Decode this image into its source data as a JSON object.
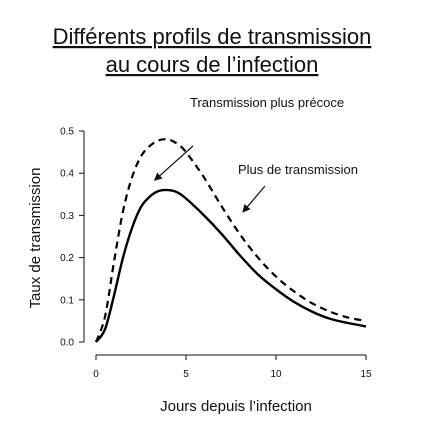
{
  "chart_data": {
    "type": "line",
    "title_line1": "Différents profils de transmission",
    "title_line2": "au cours de l’infection",
    "xlabel": "Jours depuis l’infection",
    "ylabel": "Taux de transmission",
    "xlim": [
      0,
      15
    ],
    "ylim": [
      0,
      0.5
    ],
    "xticks": [
      "0",
      "5",
      "10",
      "15"
    ],
    "yticks": [
      "0.0",
      "0.1",
      "0.2",
      "0.3",
      "0.4",
      "0.5"
    ],
    "grid": false,
    "series": [
      {
        "style": "solid",
        "color": "#000000",
        "x": [
          0,
          0.5,
          1,
          1.5,
          2,
          2.5,
          3,
          3.5,
          4,
          4.5,
          5,
          6,
          7,
          8,
          9,
          10,
          11,
          12,
          13,
          14,
          15
        ],
        "y": [
          0.0,
          0.03,
          0.11,
          0.2,
          0.27,
          0.32,
          0.345,
          0.358,
          0.36,
          0.355,
          0.34,
          0.3,
          0.255,
          0.205,
          0.16,
          0.125,
          0.095,
          0.072,
          0.055,
          0.045,
          0.037
        ]
      },
      {
        "style": "dashed",
        "color": "#000000",
        "x": [
          0,
          0.5,
          1,
          1.5,
          2,
          2.5,
          3,
          3.5,
          4,
          4.5,
          5,
          6,
          7,
          8,
          9,
          10,
          11,
          12,
          13,
          14,
          15
        ],
        "y": [
          0.0,
          0.06,
          0.19,
          0.31,
          0.39,
          0.44,
          0.465,
          0.478,
          0.48,
          0.47,
          0.45,
          0.39,
          0.32,
          0.255,
          0.2,
          0.155,
          0.12,
          0.092,
          0.072,
          0.058,
          0.05
        ]
      }
    ],
    "annotations": [
      {
        "text": "Transmission plus précoce",
        "arrow_to": [
          3.3,
          0.385
        ]
      },
      {
        "text": "Plus de transmission",
        "arrow_to": [
          8.2,
          0.31
        ]
      }
    ]
  }
}
